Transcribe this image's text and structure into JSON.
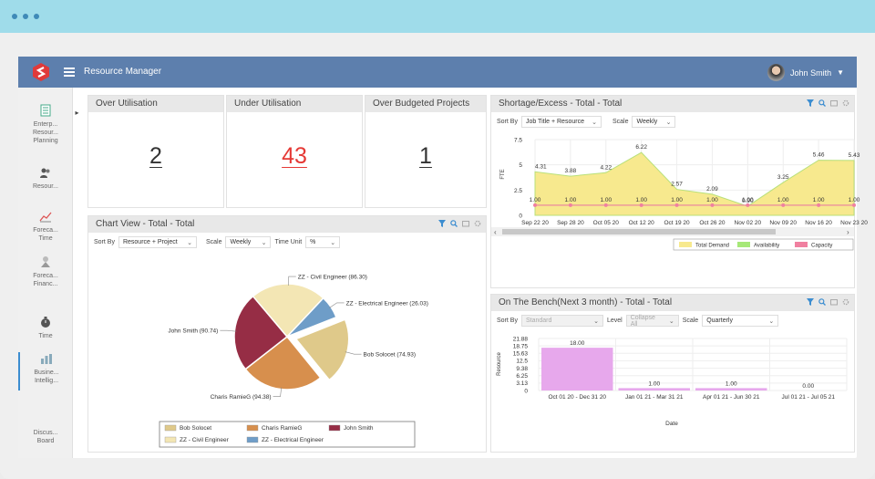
{
  "app": {
    "title": "Resource Manager",
    "user_name": "John Smith"
  },
  "sidebar": {
    "items": [
      {
        "label": "Enterp...\nResour...\nPlanning",
        "icon": "spreadsheet-icon"
      },
      {
        "label": "Resour...",
        "icon": "people-icon"
      },
      {
        "label": "Foreca...\nTime",
        "icon": "line-chart-icon"
      },
      {
        "label": "Foreca...\nFinanc...",
        "icon": "finance-icon"
      },
      {
        "label": "Time",
        "icon": "stopwatch-icon"
      },
      {
        "label": "Busine...\nIntellig...",
        "icon": "bar-chart-icon"
      },
      {
        "label": "Discus...\nBoard",
        "icon": "discussion-icon"
      }
    ]
  },
  "kpis": [
    {
      "title": "Over Utilisation",
      "value": "2",
      "color": "#333333"
    },
    {
      "title": "Under Utilisation",
      "value": "43",
      "color": "#e53935"
    },
    {
      "title": "Over Budgeted Projects",
      "value": "1",
      "color": "#333333"
    }
  ],
  "chart_view": {
    "title": "Chart View - Total - Total",
    "sort_label": "Sort By",
    "sort_value": "Resource + Project",
    "scale_label": "Scale",
    "scale_value": "Weekly",
    "time_unit_label": "Time Unit",
    "time_unit_value": "%"
  },
  "shortage": {
    "title": "Shortage/Excess - Total - Total",
    "sort_label": "Sort By",
    "sort_value": "Job Title + Resource",
    "scale_label": "Scale",
    "scale_value": "Weekly"
  },
  "bench": {
    "title": "On The Bench(Next 3 month) - Total - Total",
    "sort_label": "Sort By",
    "sort_value": "Standard",
    "level_label": "Level",
    "level_value": "Collapse All",
    "scale_label": "Scale",
    "scale_value": "Quarterly"
  },
  "chart_data": [
    {
      "type": "pie",
      "categories": [
        "Bob Solocet",
        "Charis RamieG",
        "John Smith",
        "ZZ - Civil Engineer",
        "ZZ - Electrical Engineer"
      ],
      "values": [
        74.93,
        94.38,
        90.74,
        86.3,
        26.03
      ],
      "slice_labels": [
        "Bob Solocet (74.93)",
        "Charis RamieG (94.38)",
        "John Smith (90.74)",
        "ZZ - Civil Engineer (86.30)",
        "ZZ - Electrical Engineer (26.03)"
      ],
      "colors": [
        "#dfc98a",
        "#d78f4d",
        "#962d45",
        "#f3e6b4",
        "#6e9dc8"
      ],
      "legend": [
        "Bob Solocet",
        "Charis RamieG",
        "John Smith",
        "ZZ - Civil Engineer",
        "ZZ - Electrical Engineer"
      ],
      "legend_placement": "bottom"
    },
    {
      "type": "area",
      "categories": [
        "Sep 22 20",
        "Sep 28 20",
        "Oct 05 20",
        "Oct 12 20",
        "Oct 19 20",
        "Oct 26 20",
        "Nov 02 20",
        "Nov 09 20",
        "Nov 16 20",
        "Nov 23 20"
      ],
      "series": [
        {
          "name": "Total Demand",
          "values": [
            4.31,
            3.88,
            4.22,
            6.22,
            2.57,
            2.09,
            0.9,
            3.25,
            5.46,
            5.43
          ],
          "color": "#f7e98e"
        },
        {
          "name": "Availability",
          "values": [
            1.0,
            1.0,
            1.0,
            1.0,
            1.0,
            1.0,
            1.0,
            1.0,
            1.0,
            1.0
          ],
          "color": "#a6e878"
        },
        {
          "name": "Capacity",
          "values": [
            1.0,
            1.0,
            1.0,
            1.0,
            1.0,
            1.0,
            1.0,
            1.0,
            1.0,
            1.0
          ],
          "color": "#f080a0"
        }
      ],
      "data_labels": [
        "4.31",
        "3.88",
        "4.22",
        "6.22",
        "2.57",
        "2.09",
        "0.90",
        "3.25",
        "5.46",
        "5.43"
      ],
      "capacity_labels": [
        "1.00",
        "1.00",
        "1.00",
        "1.00",
        "1.00",
        "1.00",
        "1.00",
        "1.00",
        "1.00",
        "1.00"
      ],
      "y_ticks": [
        "7.5",
        "5",
        "2.5",
        "0"
      ],
      "ylabel": "FTE",
      "ylim": [
        0,
        7.5
      ],
      "legend_placement": "bottom-right"
    },
    {
      "type": "bar",
      "categories": [
        "Oct 01 20 - Dec 31 20",
        "Jan 01 21 - Mar 31 21",
        "Apr 01 21 - Jun 30 21",
        "Jul 01 21 - Jul 05 21"
      ],
      "values": [
        18.0,
        1.0,
        1.0,
        0.0
      ],
      "data_labels": [
        "18.00",
        "1.00",
        "1.00",
        "0.00"
      ],
      "color": "#e7a8ec",
      "y_ticks": [
        "21.88",
        "18.75",
        "15.63",
        "12.5",
        "9.38",
        "6.25",
        "3.13",
        "0"
      ],
      "xlabel": "Date",
      "ylabel": "Resource",
      "ylim": [
        0,
        21.88
      ]
    }
  ]
}
